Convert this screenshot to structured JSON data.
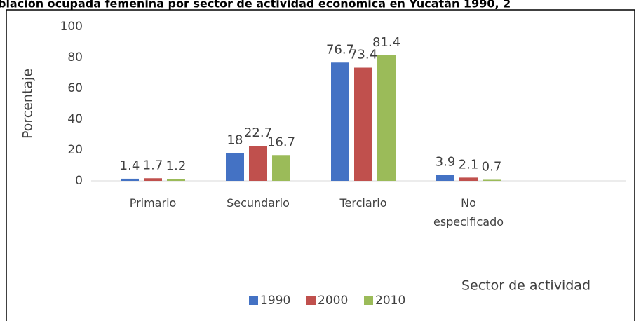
{
  "chart_data": {
    "type": "bar",
    "title": "oblación ocupada femenina por sector de actividad económica en Yucatán 1990, 2",
    "categories": [
      "Primario",
      "Secundario",
      "Terciario",
      "No especificado",
      null
    ],
    "series": [
      {
        "name": "1990",
        "color": "#4472c4",
        "values": [
          1.4,
          18,
          76.7,
          3.9,
          null
        ]
      },
      {
        "name": "2000",
        "color": "#c0504d",
        "values": [
          1.7,
          22.7,
          73.4,
          2.1,
          null
        ]
      },
      {
        "name": "2010",
        "color": "#9bbb59",
        "values": [
          1.2,
          16.7,
          81.4,
          0.7,
          null
        ]
      }
    ],
    "ylim": [
      0,
      100
    ],
    "yticks": [
      0,
      20,
      40,
      60,
      80,
      100
    ],
    "grid": false,
    "y_label": "Porcentaje",
    "x_label": "Sector de actividad",
    "legend": "bottom"
  }
}
